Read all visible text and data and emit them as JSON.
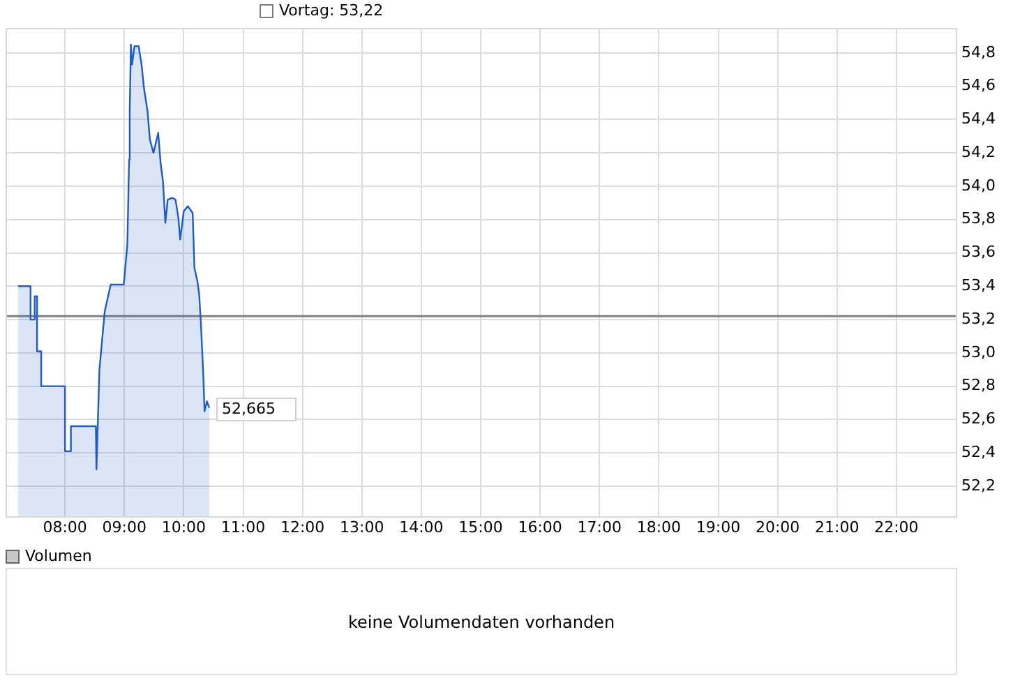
{
  "chart_data": {
    "type": "area",
    "series": [
      {
        "color": "#1f5bc6",
        "x": [
          7.21,
          7.42,
          7.42,
          7.49,
          7.49,
          7.53,
          7.53,
          7.6,
          7.6,
          8.0,
          8.0,
          8.1,
          8.1,
          8.52,
          8.53,
          8.58,
          8.67,
          8.77,
          8.99,
          9.05,
          9.08,
          9.09,
          9.11,
          9.13,
          9.17,
          9.24,
          9.29,
          9.33,
          9.39,
          9.43,
          9.49,
          9.57,
          9.61,
          9.65,
          9.69,
          9.73,
          9.81,
          9.86,
          9.91,
          9.94,
          10.0,
          10.07,
          10.15,
          10.18,
          10.23,
          10.26,
          10.29,
          10.33,
          10.35,
          10.39,
          10.43
        ],
        "values": [
          53.4,
          53.4,
          53.2,
          53.2,
          53.34,
          53.34,
          53.01,
          53.01,
          52.8,
          52.8,
          52.41,
          52.41,
          52.56,
          52.56,
          52.3,
          52.9,
          53.25,
          53.41,
          53.41,
          53.65,
          54.16,
          54.45,
          54.85,
          54.73,
          54.84,
          54.84,
          54.73,
          54.59,
          54.45,
          54.28,
          54.2,
          54.32,
          54.14,
          54.03,
          53.78,
          53.92,
          53.93,
          53.92,
          53.81,
          53.68,
          53.85,
          53.88,
          53.84,
          53.51,
          53.43,
          53.35,
          53.17,
          52.86,
          52.65,
          52.71,
          52.67
        ]
      }
    ],
    "xlim": [
      7,
      23
    ],
    "xticks": [
      {
        "value": 8,
        "label": "08:00"
      },
      {
        "value": 9,
        "label": "09:00"
      },
      {
        "value": 10,
        "label": "10:00"
      },
      {
        "value": 11,
        "label": "11:00"
      },
      {
        "value": 12,
        "label": "12:00"
      },
      {
        "value": 13,
        "label": "13:00"
      },
      {
        "value": 14,
        "label": "14:00"
      },
      {
        "value": 15,
        "label": "15:00"
      },
      {
        "value": 16,
        "label": "16:00"
      },
      {
        "value": 17,
        "label": "17:00"
      },
      {
        "value": 18,
        "label": "18:00"
      },
      {
        "value": 19,
        "label": "19:00"
      },
      {
        "value": 20,
        "label": "20:00"
      },
      {
        "value": 21,
        "label": "21:00"
      },
      {
        "value": 22,
        "label": "22:00"
      }
    ],
    "ylim": [
      52.02,
      54.95
    ],
    "yticks": [
      {
        "value": 52.2,
        "label": "52,2"
      },
      {
        "value": 52.4,
        "label": "52,4"
      },
      {
        "value": 52.6,
        "label": "52,6"
      },
      {
        "value": 52.8,
        "label": "52,8"
      },
      {
        "value": 53.0,
        "label": "53,0"
      },
      {
        "value": 53.2,
        "label": "53,2"
      },
      {
        "value": 53.4,
        "label": "53,4"
      },
      {
        "value": 53.6,
        "label": "53,6"
      },
      {
        "value": 53.8,
        "label": "53,8"
      },
      {
        "value": 54.0,
        "label": "54,0"
      },
      {
        "value": 54.2,
        "label": "54,2"
      },
      {
        "value": 54.4,
        "label": "54,4"
      },
      {
        "value": 54.6,
        "label": "54,6"
      },
      {
        "value": 54.8,
        "label": "54,8"
      }
    ],
    "ref_lines": [
      {
        "axis": "y",
        "value": 53.22,
        "label": "Vortag: 53,22",
        "color": "#808080"
      }
    ],
    "annotations": [
      {
        "text": "52,665",
        "x": 10.43,
        "y": 52.665
      },
      "Volumen",
      "keine Volumendaten vorhanden"
    ],
    "grid": true,
    "marker": "none"
  }
}
